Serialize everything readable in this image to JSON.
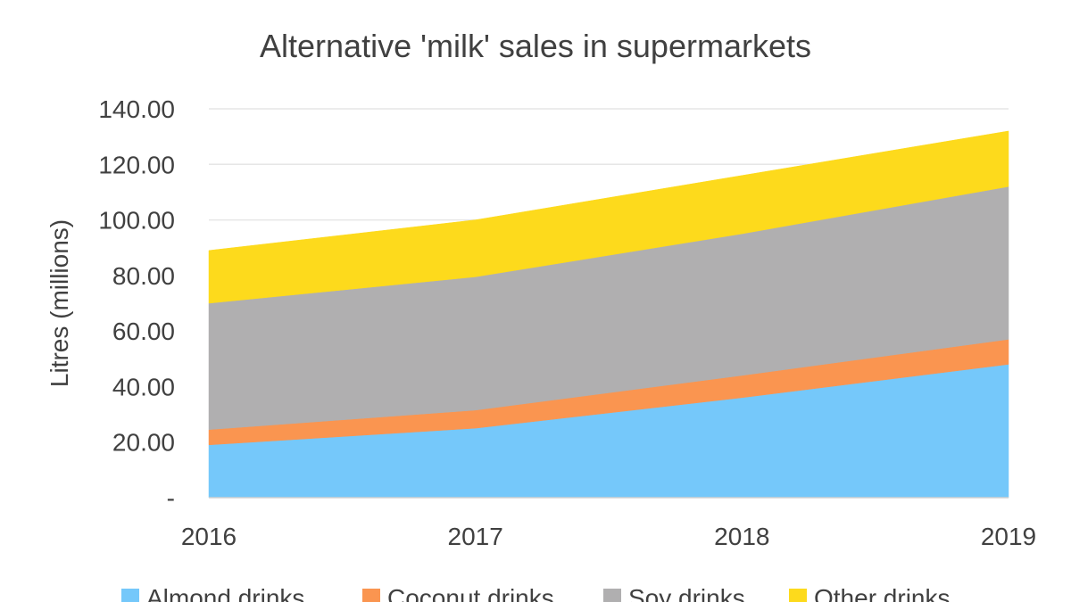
{
  "chart_data": {
    "type": "area",
    "stacked": true,
    "title": "Alternative 'milk' sales in supermarkets",
    "ylabel": "Litres (millions)",
    "xlabel": "",
    "x": [
      "2016",
      "2017",
      "2018",
      "2019"
    ],
    "ylim": [
      0,
      140
    ],
    "yticks": [
      0,
      20,
      40,
      60,
      80,
      100,
      120,
      140
    ],
    "ytick_labels": [
      "-",
      "20.00",
      "40.00",
      "60.00",
      "80.00",
      "100.00",
      "120.00",
      "140.00"
    ],
    "grid": true,
    "legend_position": "bottom",
    "series": [
      {
        "name": "Almond drinks",
        "color": "#75C8FA",
        "values": [
          19,
          25,
          36,
          48
        ]
      },
      {
        "name": "Coconut drinks",
        "color": "#FA9550",
        "values": [
          5.5,
          6.5,
          8,
          9
        ]
      },
      {
        "name": "Soy drinks",
        "color": "#B0AFB0",
        "values": [
          45.5,
          48,
          51,
          55
        ]
      },
      {
        "name": "Other drinks",
        "color": "#FDDA1C",
        "values": [
          19,
          20.5,
          21,
          20
        ]
      }
    ]
  }
}
